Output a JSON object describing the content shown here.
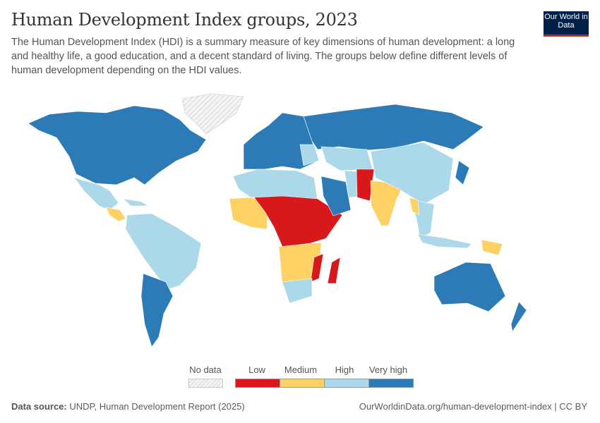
{
  "header": {
    "title": "Human Development Index groups, 2023",
    "subtitle": "The Human Development Index (HDI) is a summary measure of key dimensions of human development: a long and healthy life, a good education, and a decent standard of living. The groups below define different levels of human development depending on the HDI values.",
    "logo": "Our World in Data"
  },
  "legend": {
    "no_data": "No data",
    "items": [
      {
        "label": "Low",
        "color": "#d7191c"
      },
      {
        "label": "Medium",
        "color": "#fdd164"
      },
      {
        "label": "High",
        "color": "#abd9e9"
      },
      {
        "label": "Very high",
        "color": "#2c7bb6"
      }
    ]
  },
  "footer": {
    "source_label": "Data source:",
    "source": "UNDP, Human Development Report (2025)",
    "url": "OurWorldinData.org/human-development-index | CC BY"
  }
}
